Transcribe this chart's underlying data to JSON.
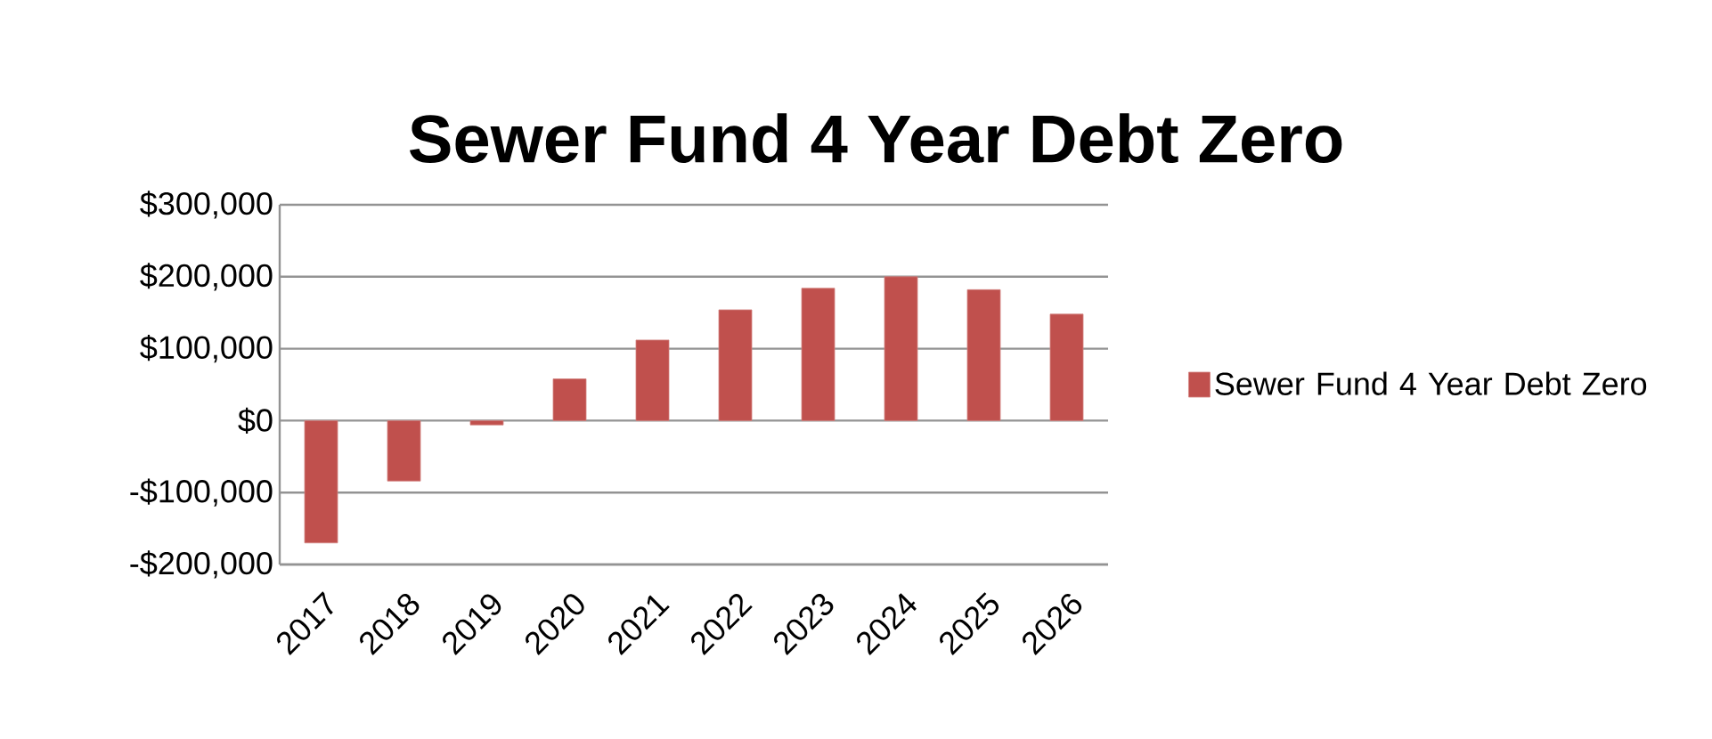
{
  "chart_data": {
    "type": "bar",
    "title": "Sewer Fund 4 Year Debt Zero",
    "categories": [
      "2017",
      "2018",
      "2019",
      "2020",
      "2021",
      "2022",
      "2023",
      "2024",
      "2025",
      "2026"
    ],
    "series": [
      {
        "name": "Sewer Fund 4 Year Debt Zero",
        "color": "#c0504d",
        "values": [
          -170000,
          -84000,
          -6000,
          58000,
          112000,
          154000,
          184000,
          200000,
          182000,
          148000
        ]
      }
    ],
    "ylim": [
      -200000,
      300000
    ],
    "yticks": [
      {
        "value": -200000,
        "label": "-$200,000"
      },
      {
        "value": -100000,
        "label": "-$100,000"
      },
      {
        "value": 0,
        "label": "$0"
      },
      {
        "value": 100000,
        "label": "$100,000"
      },
      {
        "value": 200000,
        "label": "$200,000"
      },
      {
        "value": 300000,
        "label": "$300,000"
      }
    ],
    "grid": "y",
    "legend": "right"
  }
}
